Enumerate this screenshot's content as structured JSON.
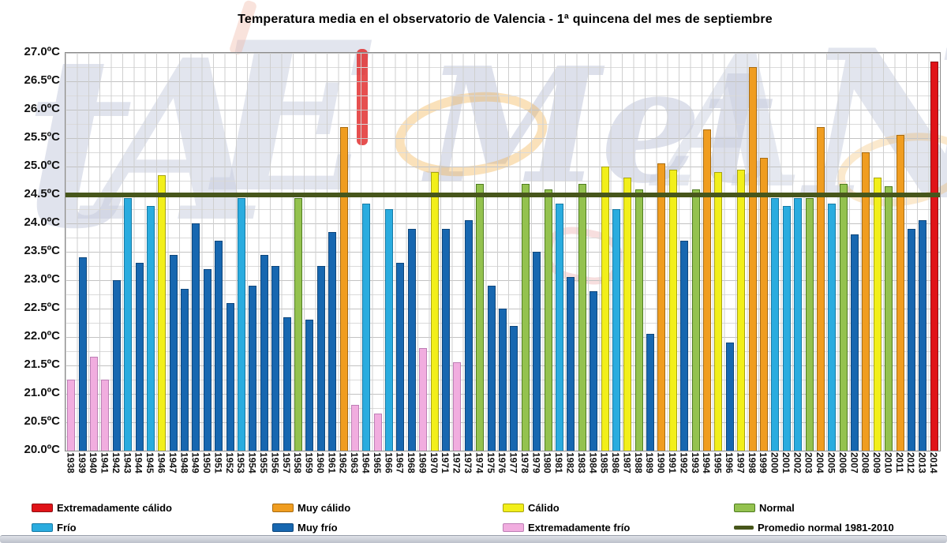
{
  "title": "Temperatura media en el observatorio de Valencia - 1ª quincena del mes de septiembre",
  "y_axis": {
    "labels": [
      "27.0ºC",
      "26.5ºC",
      "26.0ºC",
      "25.5ºC",
      "25.0ºC",
      "24.5ºC",
      "24.0ºC",
      "23.5ºC",
      "23.0ºC",
      "22.5ºC",
      "22.0ºC",
      "21.5ºC",
      "21.0ºC",
      "20.5ºC",
      "20.0ºC"
    ]
  },
  "chart_data": {
    "type": "bar",
    "title": "Temperatura media en el observatorio de Valencia - 1ª quincena del mes de septiembre",
    "ylim": [
      20.0,
      27.0
    ],
    "y_tick_step": 0.5,
    "grid": "on",
    "legend_position": "bottom",
    "reference_line": {
      "key": "PROM",
      "label": "Promedio normal 1981-2010",
      "value": 24.5,
      "color": "#47561b"
    },
    "categories": {
      "EC": {
        "label": "Extremadamente cálido",
        "fill": "#e01318",
        "border": "#8f1114"
      },
      "MC": {
        "label": "Muy cálido",
        "fill": "#f09d20",
        "border": "#a86c12"
      },
      "C": {
        "label": "Cálido",
        "fill": "#f2ef1a",
        "border": "#a8a410"
      },
      "N": {
        "label": "Normal",
        "fill": "#94c24f",
        "border": "#4f7c20"
      },
      "F": {
        "label": "Frío",
        "fill": "#2aacdf",
        "border": "#177ba6"
      },
      "MF": {
        "label": "Muy frío",
        "fill": "#1767b0",
        "border": "#0f477c"
      },
      "EF": {
        "label": "Extremadamente frío",
        "fill": "#f1addf",
        "border": "#bd7fb5"
      }
    },
    "legend_rows": [
      [
        "EC",
        "MC",
        "C",
        "N"
      ],
      [
        "F",
        "MF",
        "EF",
        "PROM"
      ]
    ],
    "bars": [
      {
        "year": 1938,
        "value": 21.25,
        "cat": "EF"
      },
      {
        "year": 1939,
        "value": 23.4,
        "cat": "MF"
      },
      {
        "year": 1940,
        "value": 21.65,
        "cat": "EF"
      },
      {
        "year": 1941,
        "value": 21.25,
        "cat": "EF"
      },
      {
        "year": 1942,
        "value": 23.0,
        "cat": "MF"
      },
      {
        "year": 1943,
        "value": 24.45,
        "cat": "F"
      },
      {
        "year": 1944,
        "value": 23.3,
        "cat": "MF"
      },
      {
        "year": 1945,
        "value": 24.3,
        "cat": "F"
      },
      {
        "year": 1946,
        "value": 24.85,
        "cat": "C"
      },
      {
        "year": 1947,
        "value": 23.45,
        "cat": "MF"
      },
      {
        "year": 1948,
        "value": 22.85,
        "cat": "MF"
      },
      {
        "year": 1949,
        "value": 24.0,
        "cat": "MF"
      },
      {
        "year": 1950,
        "value": 23.2,
        "cat": "MF"
      },
      {
        "year": 1951,
        "value": 23.7,
        "cat": "MF"
      },
      {
        "year": 1952,
        "value": 22.6,
        "cat": "MF"
      },
      {
        "year": 1953,
        "value": 24.45,
        "cat": "F"
      },
      {
        "year": 1954,
        "value": 22.9,
        "cat": "MF"
      },
      {
        "year": 1955,
        "value": 23.45,
        "cat": "MF"
      },
      {
        "year": 1956,
        "value": 23.25,
        "cat": "MF"
      },
      {
        "year": 1957,
        "value": 22.35,
        "cat": "MF"
      },
      {
        "year": 1958,
        "value": 24.45,
        "cat": "N"
      },
      {
        "year": 1959,
        "value": 22.3,
        "cat": "MF"
      },
      {
        "year": 1960,
        "value": 23.25,
        "cat": "MF"
      },
      {
        "year": 1961,
        "value": 23.85,
        "cat": "MF"
      },
      {
        "year": 1962,
        "value": 25.7,
        "cat": "MC"
      },
      {
        "year": 1963,
        "value": 20.8,
        "cat": "EF"
      },
      {
        "year": 1964,
        "value": 24.35,
        "cat": "F"
      },
      {
        "year": 1965,
        "value": 20.65,
        "cat": "EF"
      },
      {
        "year": 1966,
        "value": 24.25,
        "cat": "F"
      },
      {
        "year": 1967,
        "value": 23.3,
        "cat": "MF"
      },
      {
        "year": 1968,
        "value": 23.9,
        "cat": "MF"
      },
      {
        "year": 1969,
        "value": 21.8,
        "cat": "EF"
      },
      {
        "year": 1970,
        "value": 24.9,
        "cat": "C"
      },
      {
        "year": 1971,
        "value": 23.9,
        "cat": "MF"
      },
      {
        "year": 1972,
        "value": 21.55,
        "cat": "EF"
      },
      {
        "year": 1973,
        "value": 24.05,
        "cat": "MF"
      },
      {
        "year": 1974,
        "value": 24.7,
        "cat": "N"
      },
      {
        "year": 1975,
        "value": 22.9,
        "cat": "MF"
      },
      {
        "year": 1976,
        "value": 22.5,
        "cat": "MF"
      },
      {
        "year": 1977,
        "value": 22.2,
        "cat": "MF"
      },
      {
        "year": 1978,
        "value": 24.7,
        "cat": "N"
      },
      {
        "year": 1979,
        "value": 23.5,
        "cat": "MF"
      },
      {
        "year": 1980,
        "value": 24.6,
        "cat": "N"
      },
      {
        "year": 1981,
        "value": 24.35,
        "cat": "F"
      },
      {
        "year": 1982,
        "value": 23.05,
        "cat": "MF"
      },
      {
        "year": 1983,
        "value": 24.7,
        "cat": "N"
      },
      {
        "year": 1984,
        "value": 22.8,
        "cat": "MF"
      },
      {
        "year": 1985,
        "value": 25.0,
        "cat": "C"
      },
      {
        "year": 1986,
        "value": 24.25,
        "cat": "F"
      },
      {
        "year": 1987,
        "value": 24.8,
        "cat": "C"
      },
      {
        "year": 1988,
        "value": 24.6,
        "cat": "N"
      },
      {
        "year": 1989,
        "value": 22.05,
        "cat": "MF"
      },
      {
        "year": 1990,
        "value": 25.05,
        "cat": "MC"
      },
      {
        "year": 1991,
        "value": 24.95,
        "cat": "C"
      },
      {
        "year": 1992,
        "value": 23.7,
        "cat": "MF"
      },
      {
        "year": 1993,
        "value": 24.6,
        "cat": "N"
      },
      {
        "year": 1994,
        "value": 25.65,
        "cat": "MC"
      },
      {
        "year": 1995,
        "value": 24.9,
        "cat": "C"
      },
      {
        "year": 1996,
        "value": 21.9,
        "cat": "MF"
      },
      {
        "year": 1997,
        "value": 24.95,
        "cat": "C"
      },
      {
        "year": 1998,
        "value": 26.75,
        "cat": "MC"
      },
      {
        "year": 1999,
        "value": 25.15,
        "cat": "MC"
      },
      {
        "year": 2000,
        "value": 24.45,
        "cat": "F"
      },
      {
        "year": 2001,
        "value": 24.3,
        "cat": "F"
      },
      {
        "year": 2002,
        "value": 24.45,
        "cat": "F"
      },
      {
        "year": 2003,
        "value": 24.45,
        "cat": "N"
      },
      {
        "year": 2004,
        "value": 25.7,
        "cat": "MC"
      },
      {
        "year": 2005,
        "value": 24.35,
        "cat": "F"
      },
      {
        "year": 2006,
        "value": 24.7,
        "cat": "N"
      },
      {
        "year": 2007,
        "value": 23.8,
        "cat": "MF"
      },
      {
        "year": 2008,
        "value": 25.25,
        "cat": "MC"
      },
      {
        "year": 2009,
        "value": 24.8,
        "cat": "C"
      },
      {
        "year": 2010,
        "value": 24.65,
        "cat": "N"
      },
      {
        "year": 2011,
        "value": 25.55,
        "cat": "MC"
      },
      {
        "year": 2012,
        "value": 23.9,
        "cat": "MF"
      },
      {
        "year": 2013,
        "value": 24.05,
        "cat": "MF"
      },
      {
        "year": 2014,
        "value": 26.85,
        "cat": "EC"
      }
    ]
  }
}
